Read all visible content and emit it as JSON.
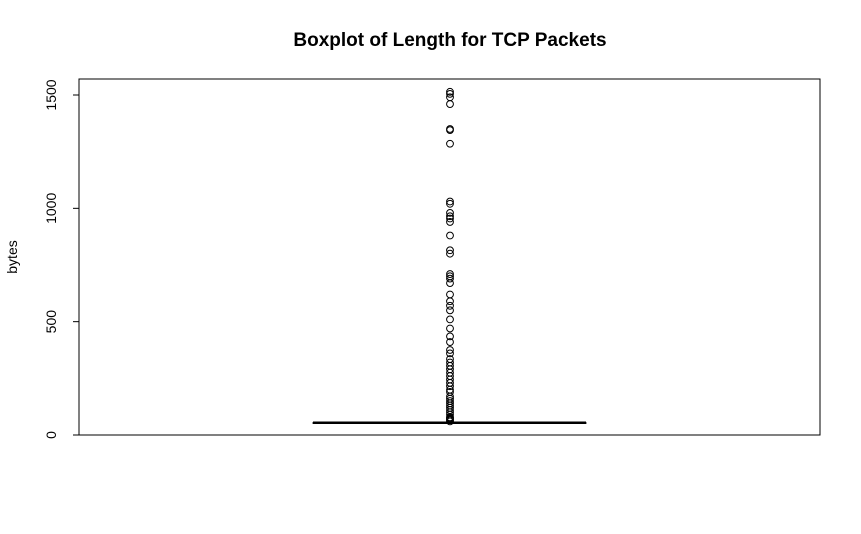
{
  "chart_data": {
    "type": "boxplot",
    "title": "Boxplot of Length for TCP Packets",
    "xlabel": "",
    "ylabel": "bytes",
    "ylim": [
      0,
      1500
    ],
    "yticks": [
      0,
      500,
      1000,
      1500
    ],
    "ytick_labels": [
      "0",
      "500",
      "1000",
      "1500"
    ],
    "box": {
      "min": 54,
      "q1": 54,
      "median": 54,
      "q3": 54,
      "max": 54
    },
    "outliers": [
      60,
      66,
      70,
      74,
      78,
      90,
      100,
      110,
      120,
      130,
      140,
      150,
      160,
      170,
      190,
      200,
      215,
      230,
      245,
      260,
      275,
      290,
      305,
      320,
      335,
      360,
      375,
      410,
      435,
      470,
      510,
      550,
      570,
      590,
      620,
      670,
      690,
      700,
      710,
      800,
      815,
      880,
      940,
      955,
      965,
      980,
      1020,
      1030,
      1285,
      1345,
      1350,
      1460,
      1490,
      1505,
      1514
    ],
    "grid": false,
    "legend": "none",
    "colors": {
      "axis": "#000000",
      "box": "#000000",
      "outlier": "#000000"
    }
  }
}
